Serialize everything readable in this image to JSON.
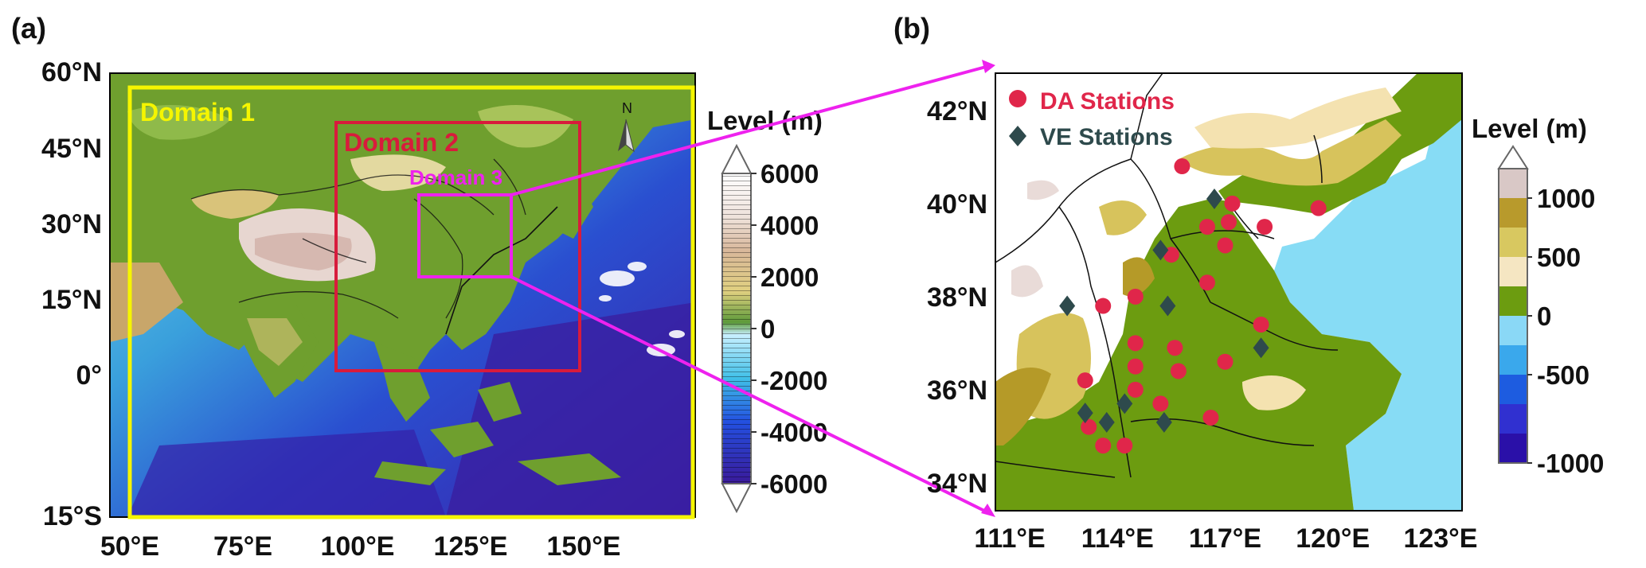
{
  "panel_a": {
    "label": "(a)",
    "lat_ticks": [
      "60°N",
      "45°N",
      "30°N",
      "15°N",
      "0°",
      "15°S"
    ],
    "lon_ticks": [
      "50°E",
      "75°E",
      "100°E",
      "125°E",
      "150°E"
    ],
    "domains": [
      {
        "label": "Domain 1",
        "color": "#f5f500"
      },
      {
        "label": "Domain 2",
        "color": "#d81b3c"
      },
      {
        "label": "Domain 3",
        "color": "#ee22ee"
      }
    ],
    "north_arrow": {
      "label": "N",
      "icon": "north-arrow-icon"
    },
    "colorbar": {
      "title": "Level (m)",
      "ticks": [
        "6000",
        "4000",
        "2000",
        "0",
        "-2000",
        "-4000",
        "-6000"
      ]
    }
  },
  "panel_b": {
    "label": "(b)",
    "lat_ticks": [
      "42°N",
      "40°N",
      "38°N",
      "36°N",
      "34°N"
    ],
    "lon_ticks": [
      "111°E",
      "114°E",
      "117°E",
      "120°E",
      "123°E"
    ],
    "legend": [
      {
        "label": "DA Stations",
        "marker": "circle",
        "color": "#e0264a"
      },
      {
        "label": "VE Stations",
        "marker": "diamond",
        "color": "#2e4a4c"
      }
    ],
    "colorbar": {
      "title": "Level (m)",
      "ticks": [
        "1000",
        "500",
        "0",
        "-500",
        "-1000"
      ]
    },
    "da_stations": [
      {
        "lon": 115.8,
        "lat": 40.8
      },
      {
        "lon": 117.2,
        "lat": 40.0
      },
      {
        "lon": 116.5,
        "lat": 39.5
      },
      {
        "lon": 117.1,
        "lat": 39.6
      },
      {
        "lon": 118.1,
        "lat": 39.5
      },
      {
        "lon": 119.6,
        "lat": 39.9
      },
      {
        "lon": 117.0,
        "lat": 39.1
      },
      {
        "lon": 115.5,
        "lat": 38.9
      },
      {
        "lon": 116.5,
        "lat": 38.3
      },
      {
        "lon": 114.5,
        "lat": 38.0
      },
      {
        "lon": 113.6,
        "lat": 37.8
      },
      {
        "lon": 118.0,
        "lat": 37.4
      },
      {
        "lon": 114.5,
        "lat": 37.0
      },
      {
        "lon": 115.6,
        "lat": 36.9
      },
      {
        "lon": 117.0,
        "lat": 36.6
      },
      {
        "lon": 114.5,
        "lat": 36.5
      },
      {
        "lon": 115.7,
        "lat": 36.4
      },
      {
        "lon": 113.1,
        "lat": 36.2
      },
      {
        "lon": 114.5,
        "lat": 36.0
      },
      {
        "lon": 115.2,
        "lat": 35.7
      },
      {
        "lon": 116.6,
        "lat": 35.4
      },
      {
        "lon": 113.2,
        "lat": 35.2
      },
      {
        "lon": 113.6,
        "lat": 34.8
      },
      {
        "lon": 114.2,
        "lat": 34.8
      }
    ],
    "ve_stations": [
      {
        "lon": 116.7,
        "lat": 40.1
      },
      {
        "lon": 115.2,
        "lat": 39.0
      },
      {
        "lon": 115.4,
        "lat": 37.8
      },
      {
        "lon": 112.6,
        "lat": 37.8
      },
      {
        "lon": 118.0,
        "lat": 36.9
      },
      {
        "lon": 114.2,
        "lat": 35.7
      },
      {
        "lon": 113.1,
        "lat": 35.5
      },
      {
        "lon": 113.7,
        "lat": 35.3
      },
      {
        "lon": 115.3,
        "lat": 35.3
      }
    ]
  }
}
